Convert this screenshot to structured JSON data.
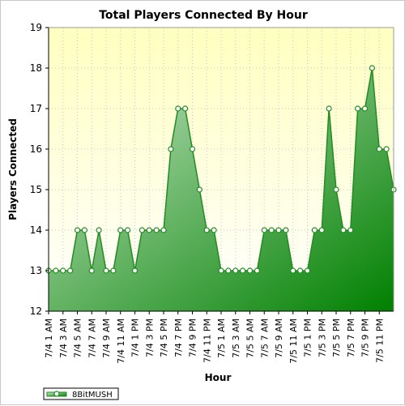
{
  "chart_data": {
    "type": "area",
    "title": "Total Players Connected By Hour",
    "xlabel": "Hour",
    "ylabel": "Players Connected",
    "ylim": [
      12,
      19
    ],
    "yticks": [
      12,
      13,
      14,
      15,
      16,
      17,
      18,
      19
    ],
    "grid": true,
    "legend_position": "bottom-left",
    "colors": {
      "plot_bg_top": "#ffffc0",
      "plot_bg_bottom": "#ffffff",
      "line": "#228b22",
      "area_light": "#c8e6c8",
      "area_dark": "#008000"
    },
    "x_tick_labels": [
      "7/4 1 AM",
      "7/4 3 AM",
      "7/4 5 AM",
      "7/4 7 AM",
      "7/4 9 AM",
      "7/4 11 AM",
      "7/4 1 PM",
      "7/4 3 PM",
      "7/4 5 PM",
      "7/4 7 PM",
      "7/4 9 PM",
      "7/4 11 PM",
      "7/5 1 AM",
      "7/5 3 AM",
      "7/5 5 AM",
      "7/5 7 AM",
      "7/5 9 AM",
      "7/5 11 AM",
      "7/5 1 PM",
      "7/5 3 PM",
      "7/5 5 PM",
      "7/5 7 PM",
      "7/5 9 PM",
      "7/5 11 PM"
    ],
    "series": [
      {
        "name": "8BitMUSH",
        "values": [
          13,
          13,
          13,
          13,
          14,
          14,
          13,
          14,
          13,
          13,
          14,
          14,
          13,
          14,
          14,
          14,
          14,
          16,
          17,
          17,
          16,
          15,
          14,
          14,
          13,
          13,
          13,
          13,
          13,
          13,
          14,
          14,
          14,
          14,
          13,
          13,
          13,
          14,
          14,
          17,
          15,
          14,
          14,
          17,
          17,
          18,
          16,
          16,
          15
        ]
      }
    ]
  }
}
